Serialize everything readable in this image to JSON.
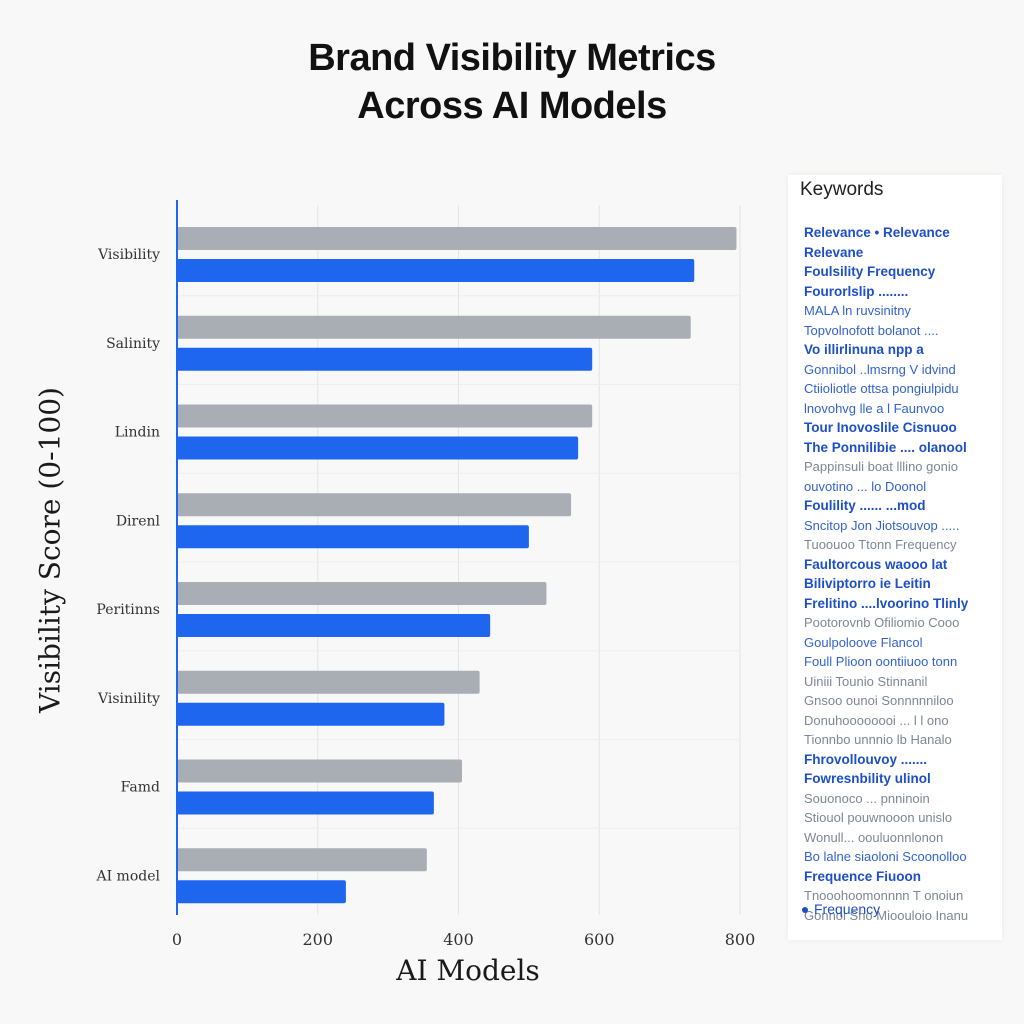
{
  "chart_data": {
    "type": "bar",
    "orientation": "horizontal",
    "title": [
      "Brand Visibility Metrics",
      "Across AI Models"
    ],
    "xlabel": "AI Models",
    "ylabel": "Visibility Score (0-100)",
    "categories": [
      "Visibility",
      "Salinity",
      "Lindin",
      "Direnl",
      "Peritinns",
      "Visinility",
      "Famd",
      "AI model"
    ],
    "x_ticks": [
      0,
      200,
      400,
      600,
      800
    ],
    "xlim": [
      0,
      800
    ],
    "grid": true,
    "series": [
      {
        "values": [
          795,
          730,
          590,
          560,
          525,
          430,
          405,
          355
        ]
      },
      {
        "values": [
          735,
          590,
          570,
          500,
          445,
          380,
          365,
          240
        ]
      }
    ],
    "colors": [
      "#a9aeb5",
      "#1f66ef"
    ],
    "legend": {
      "title": "Keywords",
      "placement": "right",
      "entries": [
        {
          "text": "Relevance  • Relevance",
          "style": "strong"
        },
        {
          "text": "Relevane",
          "style": "strong"
        },
        {
          "text": "Foulsility   Frequency",
          "style": "strong"
        },
        {
          "text": "Fourorlslip   ........",
          "style": "strong"
        },
        {
          "text": "MALA  ln   ruvsinitny",
          "style": "plain"
        },
        {
          "text": "Topvolnofott  bolanot  ....",
          "style": "plain"
        },
        {
          "text": "Vo illirlinuna  npp  a",
          "style": "strong"
        },
        {
          "text": "Gonnibol  ..lmsrng  V  idvind",
          "style": "plain"
        },
        {
          "text": "Ctiioliotle  ottsa  pongiulpidu",
          "style": "plain"
        },
        {
          "text": "lnovohvg  lle  a  l  Faunvoo",
          "style": "plain"
        },
        {
          "text": "Tour  Inovoslile  Cisnuoo",
          "style": "strong"
        },
        {
          "text": "The Ponnilibie  ....  olanool",
          "style": "strong"
        },
        {
          "text": "Pappinsuli  boat  lllino  gonio",
          "style": "faint"
        },
        {
          "text": "ouvotino  ...  lo  Doonol",
          "style": "plain"
        },
        {
          "text": "Foulility   ......  ...mod",
          "style": "strong"
        },
        {
          "text": "Sncitop  Jon  Jiotsouvop  .....",
          "style": "plain"
        },
        {
          "text": "Tuoouoo  Ttonn   Frequency",
          "style": "faint"
        },
        {
          "text": "Faultorcous  waooo  lat",
          "style": "strong"
        },
        {
          "text": "Biliviptorro  ie   Leitin",
          "style": "strong"
        },
        {
          "text": "Frelitino  ....lvoorino  Tlinly",
          "style": "strong"
        },
        {
          "text": "Pootorovnb   Ofiliomio  Cooo",
          "style": "faint"
        },
        {
          "text": "Goulpoloove   Flancol",
          "style": "plain"
        },
        {
          "text": "Foull Plioon  oontiiuoo  tonn",
          "style": "plain"
        },
        {
          "text": "Uiniii   Tounio   Stinnanil",
          "style": "faint"
        },
        {
          "text": "Gnsoo  ounoi   Sonnnnniloo",
          "style": "faint"
        },
        {
          "text": "Donuhoooooooi  ...  l  l  ono",
          "style": "faint"
        },
        {
          "text": "Tionnbo   unnnio  lb  Hanalo",
          "style": "faint"
        },
        {
          "text": "Fhrovollouvoy   .......",
          "style": "strong"
        },
        {
          "text": "Fowresnbility   ulinol",
          "style": "strong"
        },
        {
          "text": "Souonoco  ...  pnninoin",
          "style": "faint"
        },
        {
          "text": "Stiouol   pouwnooon  unislo",
          "style": "faint"
        },
        {
          "text": "Wonull...  oouluonnlonon",
          "style": "faint"
        },
        {
          "text": "Bo lalne  siaoloni   Scoonolloo",
          "style": "plain"
        },
        {
          "text": "Frequence    Fiuoon",
          "style": "strong"
        },
        {
          "text": "Tnooohoomonnnn  T  onoiun",
          "style": "faint"
        },
        {
          "text": "Gonnol  Sno Mioouloio  Inanu",
          "style": "faint"
        }
      ],
      "footer": "Frequency"
    }
  }
}
